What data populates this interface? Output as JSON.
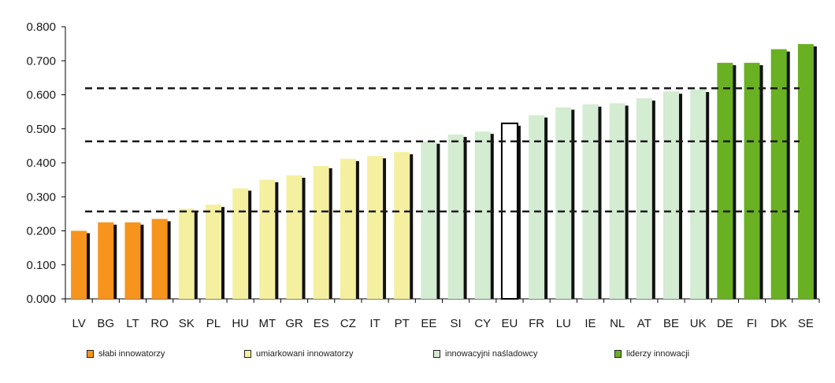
{
  "chart_data": {
    "type": "bar",
    "title": "",
    "xlabel": "",
    "ylabel": "",
    "ylim": [
      0,
      0.8
    ],
    "yticks": [
      "0.000",
      "0.100",
      "0.200",
      "0.300",
      "0.400",
      "0.500",
      "0.600",
      "0.700",
      "0.800"
    ],
    "categories": [
      "LV",
      "BG",
      "LT",
      "RO",
      "SK",
      "PL",
      "HU",
      "MT",
      "GR",
      "ES",
      "CZ",
      "IT",
      "PT",
      "EE",
      "SI",
      "CY",
      "EU",
      "FR",
      "LU",
      "IE",
      "NL",
      "AT",
      "BE",
      "UK",
      "DE",
      "FI",
      "DK",
      "SE"
    ],
    "values": [
      0.2,
      0.225,
      0.225,
      0.235,
      0.265,
      0.277,
      0.325,
      0.35,
      0.363,
      0.391,
      0.412,
      0.42,
      0.432,
      0.463,
      0.483,
      0.492,
      0.516,
      0.54,
      0.563,
      0.572,
      0.575,
      0.59,
      0.61,
      0.615,
      0.694,
      0.694,
      0.734,
      0.749
    ],
    "groups": [
      "weak",
      "weak",
      "weak",
      "weak",
      "moderate",
      "moderate",
      "moderate",
      "moderate",
      "moderate",
      "moderate",
      "moderate",
      "moderate",
      "moderate",
      "follower",
      "follower",
      "follower",
      "eu",
      "follower",
      "follower",
      "follower",
      "follower",
      "follower",
      "follower",
      "follower",
      "leader",
      "leader",
      "leader",
      "leader"
    ],
    "reference_lines": [
      0.257,
      0.463,
      0.619
    ],
    "grid": false,
    "legend_position": "bottom",
    "legend": [
      {
        "key": "weak",
        "label": "słabi innowatorzy"
      },
      {
        "key": "moderate",
        "label": "umiarkowani innowatorzy"
      },
      {
        "key": "follower",
        "label": "innowacyjni naśladowcy"
      },
      {
        "key": "leader",
        "label": "liderzy innowacji"
      }
    ],
    "colors": {
      "weak": "#f7941d",
      "moderate": "#f5f0a0",
      "follower": "#d4ecd2",
      "leader": "#6ab023",
      "eu": "#ffffff",
      "shadow": "#111111"
    }
  }
}
